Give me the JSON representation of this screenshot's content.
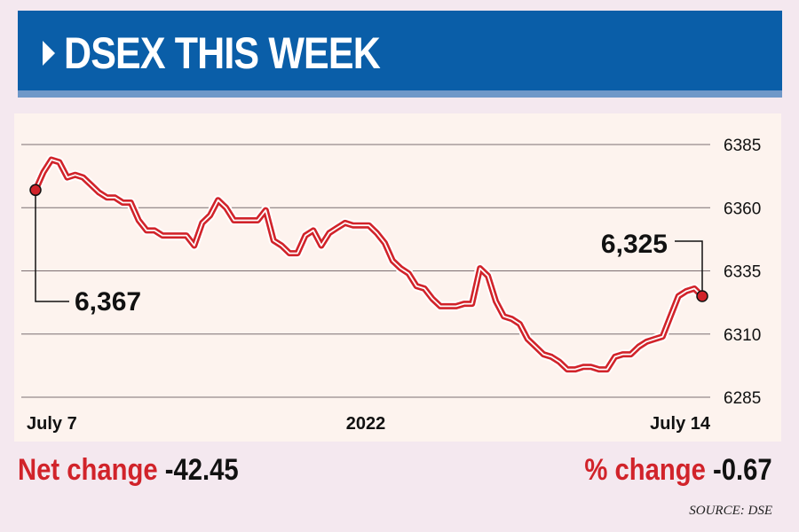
{
  "header": {
    "title": "DSEX THIS WEEK"
  },
  "chart_data": {
    "type": "line",
    "title": "DSEX THIS WEEK",
    "x_tick_labels": [
      "July 7",
      "2022",
      "July 14"
    ],
    "y_ticks": [
      6385,
      6360,
      6335,
      6310,
      6285
    ],
    "ylim": [
      6285,
      6385
    ],
    "grid": true,
    "series": [
      {
        "values": [
          6367,
          6374,
          6379,
          6378,
          6372,
          6373,
          6372,
          6369,
          6366,
          6364,
          6364,
          6362,
          6362,
          6355,
          6351,
          6351,
          6349,
          6349,
          6349,
          6349,
          6345,
          6354,
          6357,
          6363,
          6360,
          6355,
          6355,
          6355,
          6355,
          6359,
          6347,
          6345,
          6342,
          6342,
          6349,
          6351,
          6345,
          6350,
          6352,
          6354,
          6353,
          6353,
          6353,
          6350,
          6346,
          6339,
          6336,
          6334,
          6329,
          6328,
          6324,
          6321,
          6321,
          6321,
          6322,
          6322,
          6336,
          6333,
          6323,
          6317,
          6316,
          6314,
          6308,
          6305,
          6302,
          6301,
          6299,
          6296,
          6296,
          6297,
          6297,
          6296,
          6296,
          6301,
          6302,
          6302,
          6305,
          6307,
          6308,
          6309,
          6317,
          6325,
          6327,
          6328,
          6325
        ],
        "color": "#d1232a"
      }
    ],
    "annotations": [
      {
        "label": "6,367",
        "value": 6367,
        "at": "start"
      },
      {
        "label": "6,325",
        "value": 6325,
        "at": "end"
      }
    ]
  },
  "footer": {
    "net_change_label": "Net change",
    "net_change_value": "-42.45",
    "pct_change_label": "% change",
    "pct_change_value": "-0.67"
  },
  "source": "SOURCE: DSE",
  "colors": {
    "banner": "#0a5ea8",
    "line": "#d1232a",
    "panel": "#fdf3ee"
  }
}
